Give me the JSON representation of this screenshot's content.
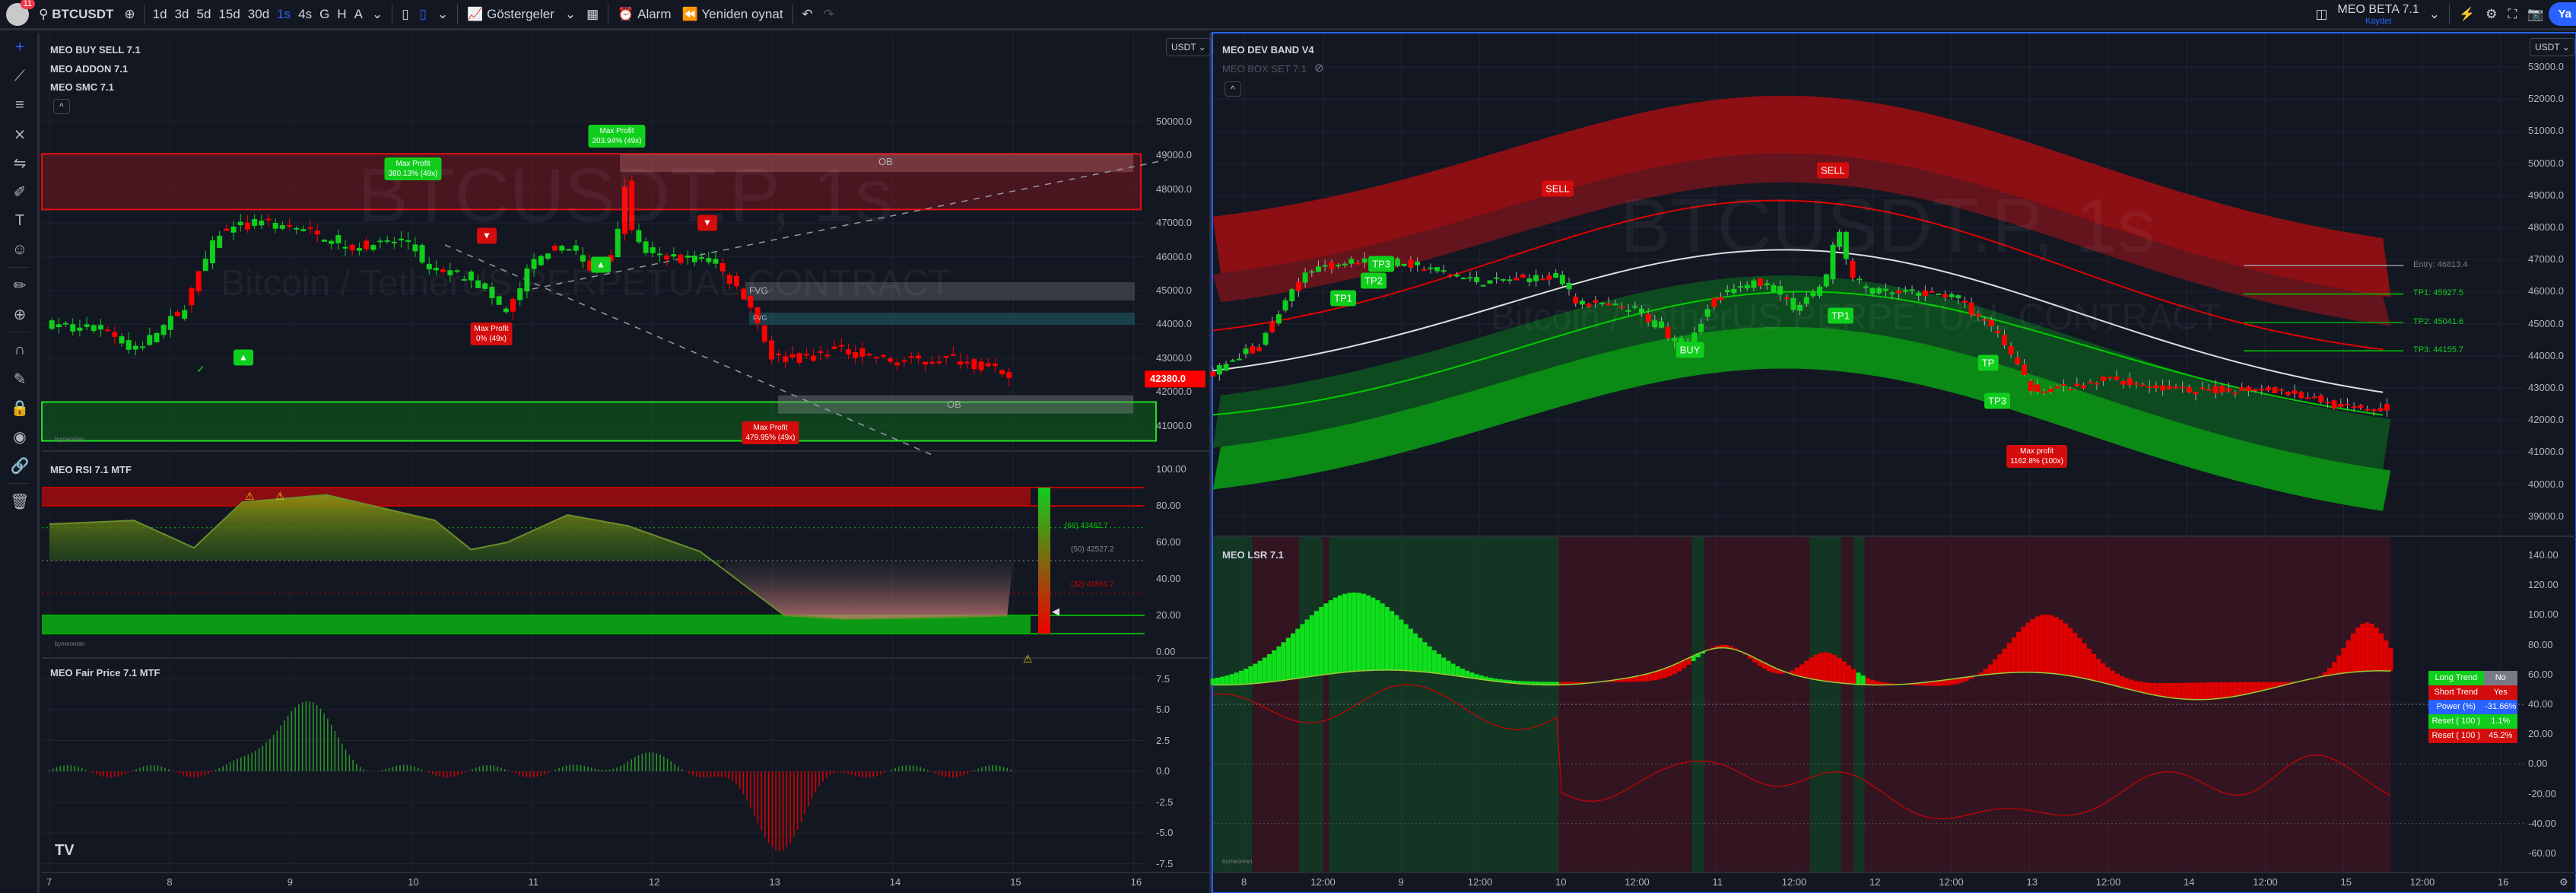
{
  "toolbar": {
    "symbol": "BTCUSDT",
    "badge": "11",
    "intervals": [
      "1d",
      "3d",
      "5d",
      "15d",
      "30d",
      "1s",
      "4s",
      "G",
      "H",
      "A"
    ],
    "active_interval": "1s",
    "indicators": "Göstergeler",
    "alarm": "Alarm",
    "replay": "Yeniden oynat",
    "layout_name": "MEO BETA 7.1",
    "save": "Kaydet",
    "publish": "Ya"
  },
  "left_tools": [
    "crosshair-icon",
    "trend-line-icon",
    "fib-icon",
    "pattern-icon",
    "forecast-icon",
    "brush-icon",
    "text-icon",
    "emoji-icon",
    "ruler-icon",
    "zoom-in-icon",
    "magnet-icon",
    "draw-lock-icon",
    "lock-icon",
    "eye-icon",
    "link-icon",
    "trash-icon"
  ],
  "left_chart": {
    "currency": "USDT",
    "indicators": [
      "MEO BUY SELL 7.1",
      "MEO ADDON 7.1",
      "MEO SMC 7.1"
    ],
    "watermark": "BTCUSDT.P, 1s",
    "watermark_sub": "Bitcoin / TetherUS PERPETUAL CONTRACT",
    "price_ticks": [
      "50000.0",
      "49000.0",
      "48000.0",
      "47000.0",
      "46000.0",
      "45000.0",
      "44000.0",
      "43000.0",
      "42000.0",
      "41000.0"
    ],
    "last_price": "42380.0",
    "zones": {
      "ob_top": "OB",
      "fvg1": "FVG",
      "fvg2": "FVG",
      "ob_bottom": "OB",
      "author": "bymeoman"
    },
    "max_profit": [
      {
        "title": "Max Profit",
        "value": "380.13% (49x)"
      },
      {
        "title": "Max Profit",
        "value": "203.94% (49x)"
      },
      {
        "title": "Max Profit",
        "value": "0% (49x)"
      },
      {
        "title": "Max Profit",
        "value": "479.95% (49x)"
      }
    ],
    "rsi": {
      "title": "MEO RSI 7.1 MTF",
      "ticks": [
        "100.00",
        "80.00",
        "60.00",
        "40.00",
        "20.00",
        "0.00"
      ],
      "levels": [
        "(68)  43462.7",
        "(50) 42527.2",
        "(32) 41861.7"
      ],
      "author": "bymeoman"
    },
    "fair_price": {
      "title": "MEO Fair Price 7.1 MTF",
      "ticks": [
        "7.5",
        "5.0",
        "2.5",
        "0.0",
        "-2.5",
        "-5.0",
        "-7.5"
      ]
    },
    "time_ticks": [
      "7",
      "8",
      "9",
      "10",
      "11",
      "12",
      "13",
      "14",
      "15",
      "16"
    ]
  },
  "right_chart": {
    "currency": "USDT",
    "indicators": [
      "MEO DEV BAND V4",
      "MEO BOX SET 7.1"
    ],
    "watermark": "BTCUSDT.P, 1s",
    "watermark_sub": "Bitcoin / TetherUS PERPETUAL CONTRACT",
    "price_ticks": [
      "53000.0",
      "52000.0",
      "51000.0",
      "50000.0",
      "49000.0",
      "48000.0",
      "47000.0",
      "46000.0",
      "45000.0",
      "44000.0",
      "43000.0",
      "42000.0",
      "41000.0",
      "40000.0",
      "39000.0"
    ],
    "levels": {
      "entry": "Entry: 46813.4",
      "tp1": "TP1: 45927.5",
      "tp2": "TP2: 45041.6",
      "tp3": "TP3: 44155.7"
    },
    "signals": [
      "TP1",
      "TP2",
      "TP3",
      "SELL",
      "BUY",
      "SELL",
      "TP1",
      "TP",
      "TP3"
    ],
    "max_profit": {
      "title": "Max profit",
      "value": "1162.8% (100x)"
    },
    "lsr": {
      "title": "MEO LSR 7.1",
      "ticks": [
        "140.00",
        "120.00",
        "100.00",
        "80.00",
        "60.00",
        "40.00",
        "20.00",
        "0.00",
        "-20.00",
        "-40.00",
        "-60.00"
      ],
      "author": "bymeoman",
      "table": [
        {
          "k": "Long Trend",
          "v": "No",
          "kc": "#0fce1c",
          "vc": "#787b86"
        },
        {
          "k": "Short Trend",
          "v": "Yes",
          "kc": "#d40c0c",
          "vc": "#d40c0c"
        },
        {
          "k": "Power (%)",
          "v": "-31.66%",
          "kc": "#2962ff",
          "vc": "#2962ff"
        },
        {
          "k": "Reset ( 100 )",
          "v": "1.1%",
          "kc": "#0fce1c",
          "vc": "#0fce1c"
        },
        {
          "k": "Reset ( 100 )",
          "v": "45.2%",
          "kc": "#d40c0c",
          "vc": "#d40c0c"
        }
      ]
    },
    "time_ticks": [
      "8",
      "12:00",
      "9",
      "12:00",
      "10",
      "12:00",
      "11",
      "12:00",
      "12",
      "12:00",
      "13",
      "12:00",
      "14",
      "12:00",
      "15",
      "12:00",
      "16"
    ]
  },
  "colors": {
    "bull": "#0fce1c",
    "bear": "#ff0000",
    "accent": "#2962ff",
    "bg": "#131722"
  },
  "price_path": [
    [
      7,
      44000
    ],
    [
      7.5,
      43800
    ],
    [
      7.7,
      43200
    ],
    [
      8.1,
      44400
    ],
    [
      8.4,
      46700
    ],
    [
      8.7,
      47000
    ],
    [
      9,
      46900
    ],
    [
      9.5,
      46300
    ],
    [
      10,
      46500
    ],
    [
      10.1,
      45700
    ],
    [
      10.5,
      45400
    ],
    [
      10.8,
      44300
    ],
    [
      11,
      45800
    ],
    [
      11.3,
      46400
    ],
    [
      11.5,
      45500
    ],
    [
      11.7,
      46300
    ],
    [
      11.78,
      48200
    ],
    [
      11.85,
      46500
    ],
    [
      12,
      46000
    ],
    [
      12.5,
      45900
    ],
    [
      12.8,
      44700
    ],
    [
      13,
      43000
    ],
    [
      13.3,
      43000
    ],
    [
      13.5,
      43300
    ],
    [
      14,
      42900
    ],
    [
      14.5,
      43000
    ],
    [
      14.8,
      42700
    ],
    [
      15,
      42380
    ]
  ]
}
